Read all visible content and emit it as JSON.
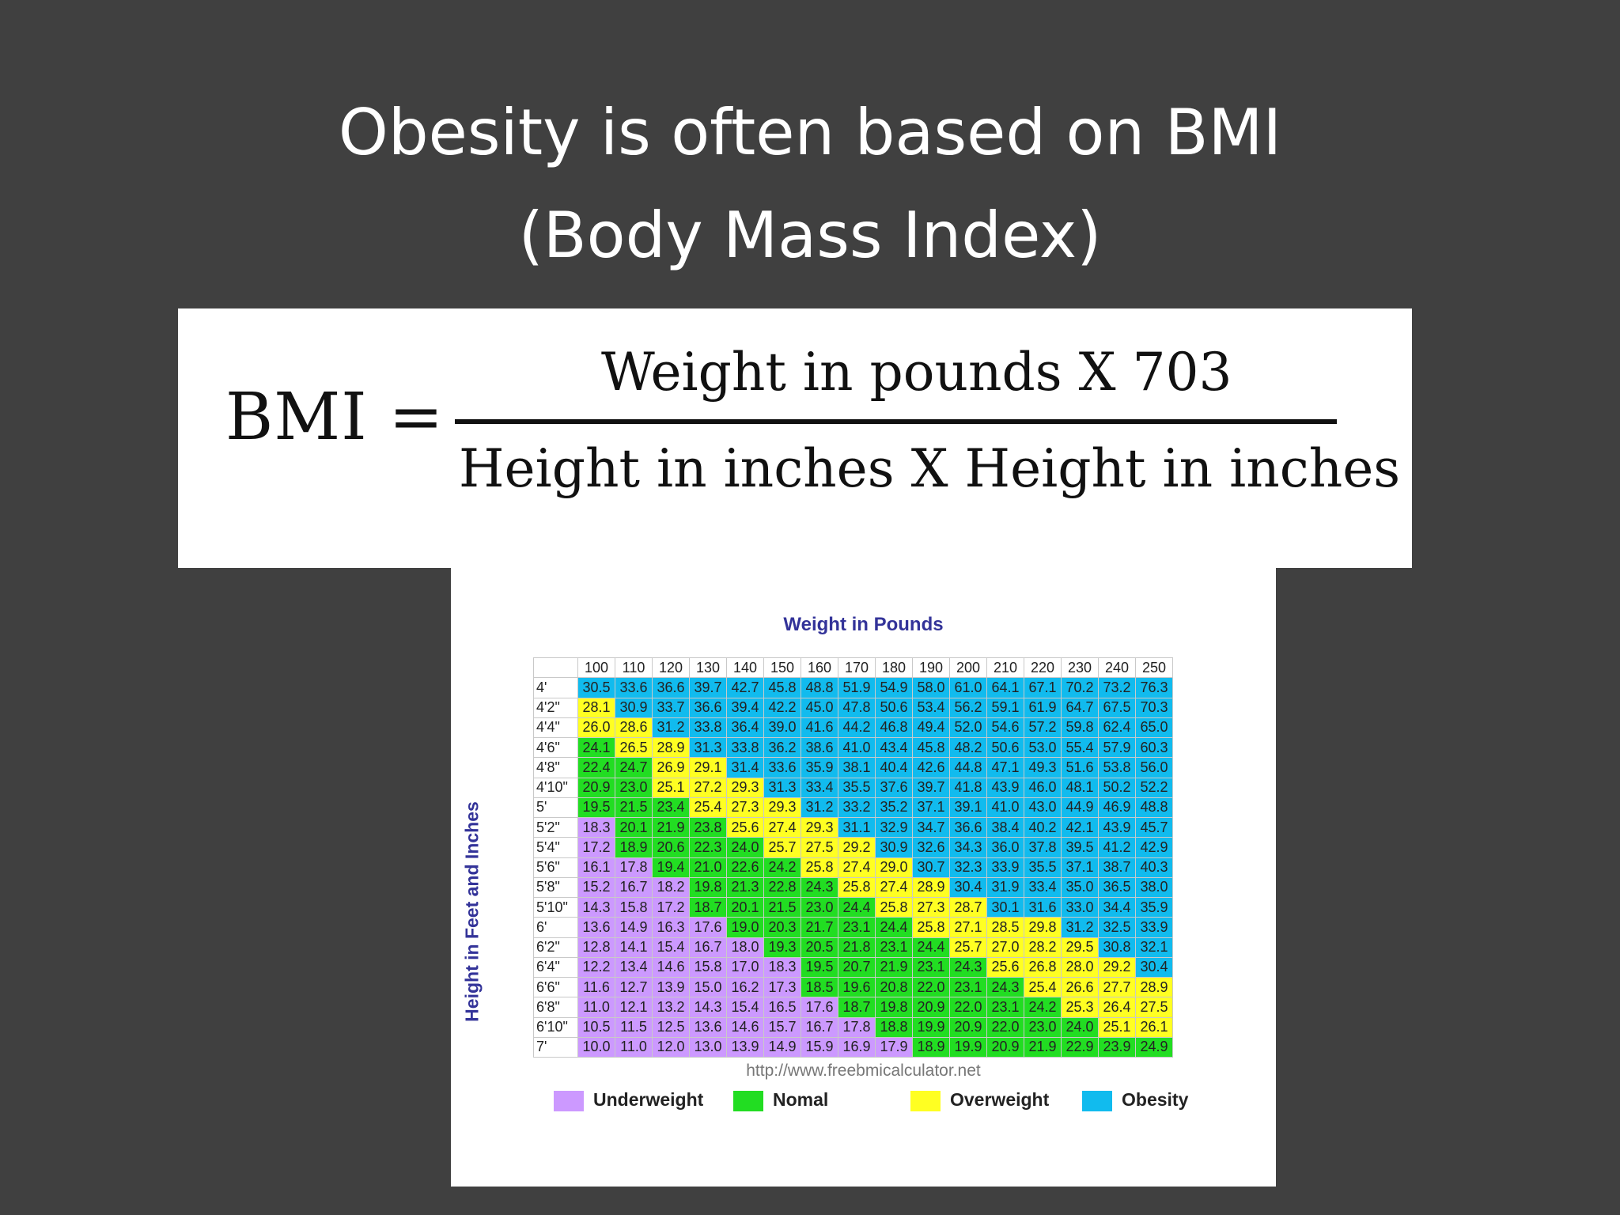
{
  "slide": {
    "title_line1": "Obesity is often based on BMI",
    "title_line2": "(Body Mass Index)"
  },
  "formula": {
    "lhs": "BMI =",
    "numerator": "Weight in pounds  X  703",
    "denominator": "Height in inches  X  Height in inches"
  },
  "chart": {
    "title": "Weight in Pounds",
    "y_title": "Height in Feet and Inches",
    "source": "http://www.freebmicalculator.net",
    "legend": [
      {
        "label": "Underweight",
        "color": "#cc99ff"
      },
      {
        "label": "Nomal",
        "color": "#22dd22"
      },
      {
        "label": "Overweight",
        "color": "#ffff22"
      },
      {
        "label": "Obesity",
        "color": "#11bbee"
      }
    ]
  },
  "chart_data": {
    "type": "table",
    "title": "Weight in Pounds",
    "xlabel": "Weight in Pounds",
    "ylabel": "Height in Feet and Inches",
    "columns": [
      "100",
      "110",
      "120",
      "130",
      "140",
      "150",
      "160",
      "170",
      "180",
      "190",
      "200",
      "210",
      "220",
      "230",
      "240",
      "250"
    ],
    "rows": [
      {
        "height": "4'",
        "values": [
          "30.5",
          "33.6",
          "36.6",
          "39.7",
          "42.7",
          "45.8",
          "48.8",
          "51.9",
          "54.9",
          "58.0",
          "61.0",
          "64.1",
          "67.1",
          "70.2",
          "73.2",
          "76.3"
        ]
      },
      {
        "height": "4'2\"",
        "values": [
          "28.1",
          "30.9",
          "33.7",
          "36.6",
          "39.4",
          "42.2",
          "45.0",
          "47.8",
          "50.6",
          "53.4",
          "56.2",
          "59.1",
          "61.9",
          "64.7",
          "67.5",
          "70.3"
        ]
      },
      {
        "height": "4'4\"",
        "values": [
          "26.0",
          "28.6",
          "31.2",
          "33.8",
          "36.4",
          "39.0",
          "41.6",
          "44.2",
          "46.8",
          "49.4",
          "52.0",
          "54.6",
          "57.2",
          "59.8",
          "62.4",
          "65.0"
        ]
      },
      {
        "height": "4'6\"",
        "values": [
          "24.1",
          "26.5",
          "28.9",
          "31.3",
          "33.8",
          "36.2",
          "38.6",
          "41.0",
          "43.4",
          "45.8",
          "48.2",
          "50.6",
          "53.0",
          "55.4",
          "57.9",
          "60.3"
        ]
      },
      {
        "height": "4'8\"",
        "values": [
          "22.4",
          "24.7",
          "26.9",
          "29.1",
          "31.4",
          "33.6",
          "35.9",
          "38.1",
          "40.4",
          "42.6",
          "44.8",
          "47.1",
          "49.3",
          "51.6",
          "53.8",
          "56.0"
        ]
      },
      {
        "height": "4'10\"",
        "values": [
          "20.9",
          "23.0",
          "25.1",
          "27.2",
          "29.3",
          "31.3",
          "33.4",
          "35.5",
          "37.6",
          "39.7",
          "41.8",
          "43.9",
          "46.0",
          "48.1",
          "50.2",
          "52.2"
        ]
      },
      {
        "height": "5'",
        "values": [
          "19.5",
          "21.5",
          "23.4",
          "25.4",
          "27.3",
          "29.3",
          "31.2",
          "33.2",
          "35.2",
          "37.1",
          "39.1",
          "41.0",
          "43.0",
          "44.9",
          "46.9",
          "48.8"
        ]
      },
      {
        "height": "5'2\"",
        "values": [
          "18.3",
          "20.1",
          "21.9",
          "23.8",
          "25.6",
          "27.4",
          "29.3",
          "31.1",
          "32.9",
          "34.7",
          "36.6",
          "38.4",
          "40.2",
          "42.1",
          "43.9",
          "45.7"
        ]
      },
      {
        "height": "5'4\"",
        "values": [
          "17.2",
          "18.9",
          "20.6",
          "22.3",
          "24.0",
          "25.7",
          "27.5",
          "29.2",
          "30.9",
          "32.6",
          "34.3",
          "36.0",
          "37.8",
          "39.5",
          "41.2",
          "42.9"
        ]
      },
      {
        "height": "5'6\"",
        "values": [
          "16.1",
          "17.8",
          "19.4",
          "21.0",
          "22.6",
          "24.2",
          "25.8",
          "27.4",
          "29.0",
          "30.7",
          "32.3",
          "33.9",
          "35.5",
          "37.1",
          "38.7",
          "40.3"
        ]
      },
      {
        "height": "5'8\"",
        "values": [
          "15.2",
          "16.7",
          "18.2",
          "19.8",
          "21.3",
          "22.8",
          "24.3",
          "25.8",
          "27.4",
          "28.9",
          "30.4",
          "31.9",
          "33.4",
          "35.0",
          "36.5",
          "38.0"
        ]
      },
      {
        "height": "5'10\"",
        "values": [
          "14.3",
          "15.8",
          "17.2",
          "18.7",
          "20.1",
          "21.5",
          "23.0",
          "24.4",
          "25.8",
          "27.3",
          "28.7",
          "30.1",
          "31.6",
          "33.0",
          "34.4",
          "35.9"
        ]
      },
      {
        "height": "6'",
        "values": [
          "13.6",
          "14.9",
          "16.3",
          "17.6",
          "19.0",
          "20.3",
          "21.7",
          "23.1",
          "24.4",
          "25.8",
          "27.1",
          "28.5",
          "29.8",
          "31.2",
          "32.5",
          "33.9"
        ]
      },
      {
        "height": "6'2\"",
        "values": [
          "12.8",
          "14.1",
          "15.4",
          "16.7",
          "18.0",
          "19.3",
          "20.5",
          "21.8",
          "23.1",
          "24.4",
          "25.7",
          "27.0",
          "28.2",
          "29.5",
          "30.8",
          "32.1"
        ]
      },
      {
        "height": "6'4\"",
        "values": [
          "12.2",
          "13.4",
          "14.6",
          "15.8",
          "17.0",
          "18.3",
          "19.5",
          "20.7",
          "21.9",
          "23.1",
          "24.3",
          "25.6",
          "26.8",
          "28.0",
          "29.2",
          "30.4"
        ]
      },
      {
        "height": "6'6\"",
        "values": [
          "11.6",
          "12.7",
          "13.9",
          "15.0",
          "16.2",
          "17.3",
          "18.5",
          "19.6",
          "20.8",
          "22.0",
          "23.1",
          "24.3",
          "25.4",
          "26.6",
          "27.7",
          "28.9"
        ]
      },
      {
        "height": "6'8\"",
        "values": [
          "11.0",
          "12.1",
          "13.2",
          "14.3",
          "15.4",
          "16.5",
          "17.6",
          "18.7",
          "19.8",
          "20.9",
          "22.0",
          "23.1",
          "24.2",
          "25.3",
          "26.4",
          "27.5"
        ]
      },
      {
        "height": "6'10\"",
        "values": [
          "10.5",
          "11.5",
          "12.5",
          "13.6",
          "14.6",
          "15.7",
          "16.7",
          "17.8",
          "18.8",
          "19.9",
          "20.9",
          "22.0",
          "23.0",
          "24.0",
          "25.1",
          "26.1"
        ]
      },
      {
        "height": "7'",
        "values": [
          "10.0",
          "11.0",
          "12.0",
          "13.0",
          "13.9",
          "14.9",
          "15.9",
          "16.9",
          "17.9",
          "18.9",
          "19.9",
          "20.9",
          "21.9",
          "22.9",
          "23.9",
          "24.9"
        ]
      }
    ],
    "categories": {
      "Underweight": "#cc99ff",
      "Nomal": "#22dd22",
      "Overweight": "#ffff22",
      "Obesity": "#11bbee"
    }
  }
}
